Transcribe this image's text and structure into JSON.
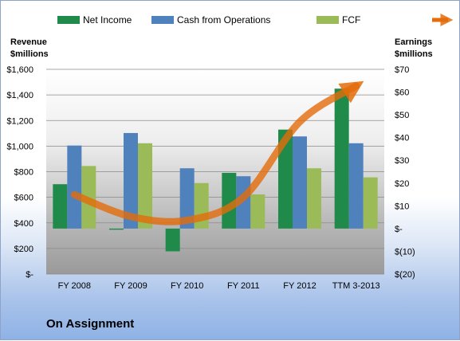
{
  "company": "On Assignment",
  "left_axis_title": [
    "Revenue",
    "$millions"
  ],
  "right_axis_title": [
    "Earnings",
    "$millions"
  ],
  "chart_data": {
    "type": "bar",
    "categories": [
      "FY 2008",
      "FY 2009",
      "FY 2010",
      "FY 2011",
      "FY 2012",
      "TTM 3-2013"
    ],
    "series": [
      {
        "name": "Net Income",
        "axis": "right",
        "color": "#1f8a4a",
        "values": [
          19.5,
          -0.5,
          -10.0,
          24.5,
          43.5,
          61.5
        ]
      },
      {
        "name": "Cash from Operations",
        "axis": "right",
        "color": "#4f81bd",
        "values": [
          36.5,
          42.0,
          26.5,
          23.0,
          40.5,
          37.5
        ]
      },
      {
        "name": "FCF",
        "axis": "right",
        "color": "#9bbb59",
        "values": [
          27.5,
          37.5,
          20.0,
          15.0,
          26.5,
          22.5
        ]
      },
      {
        "name": "Revenues",
        "axis": "left",
        "type": "line",
        "color": "#e46c0a",
        "values": [
          620,
          450,
          420,
          600,
          1190,
          1470
        ]
      }
    ],
    "ylim_left": [
      0,
      1600
    ],
    "ylim_right": [
      -20,
      70
    ],
    "left_ticks": [
      "$-",
      "$200",
      "$400",
      "$600",
      "$800",
      "$1,000",
      "$1,200",
      "$1,400",
      "$1,600"
    ],
    "right_ticks": [
      "$(20)",
      "$(10)",
      "$-",
      "$10",
      "$20",
      "$30",
      "$40",
      "$50",
      "$60",
      "$70"
    ],
    "legend_position": "top"
  }
}
